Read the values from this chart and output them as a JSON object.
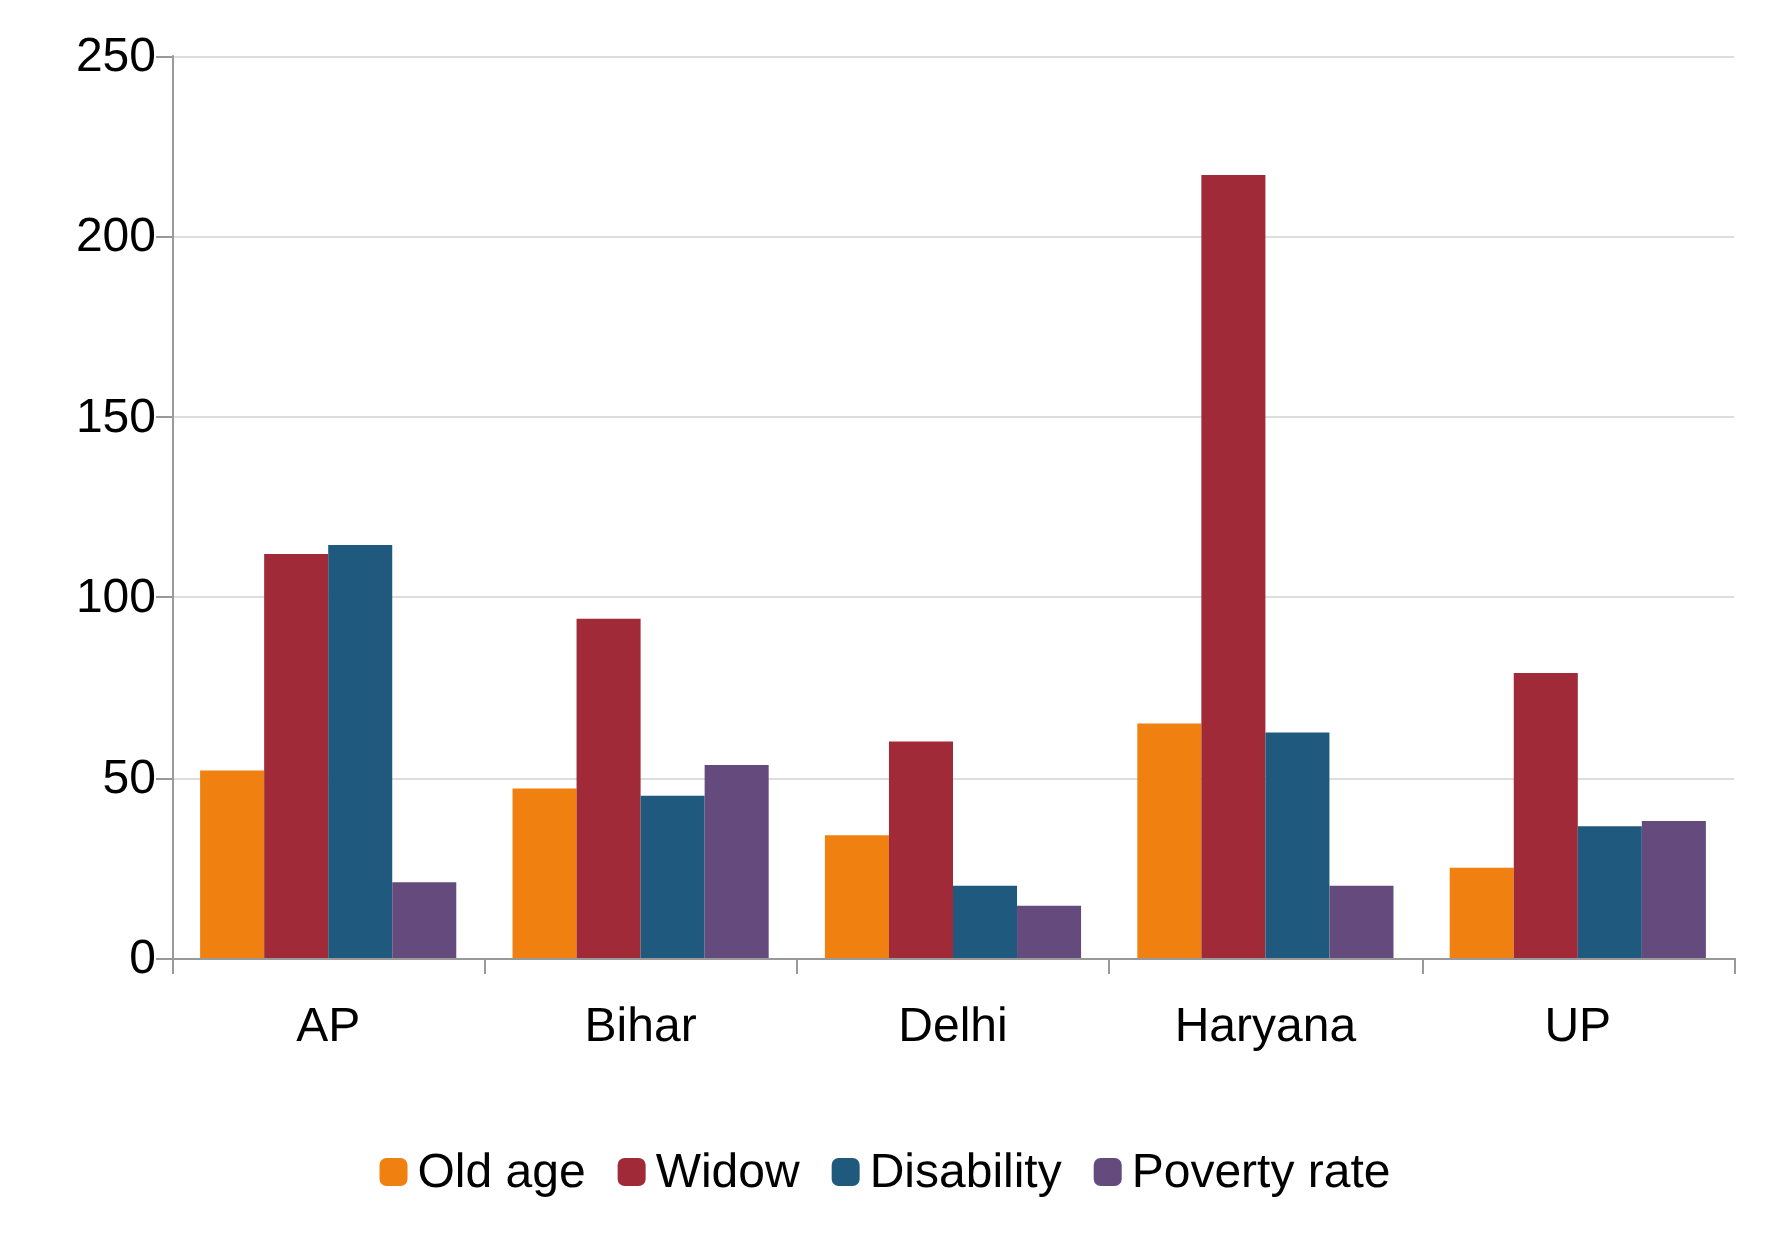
{
  "chart_data": {
    "type": "bar",
    "categories": [
      "AP",
      "Bihar",
      "Delhi",
      "Haryana",
      "UP"
    ],
    "series": [
      {
        "name": "Old age",
        "color": "#f08010",
        "values": [
          52,
          47,
          34,
          65,
          25
        ]
      },
      {
        "name": "Widow",
        "color": "#a02a38",
        "values": [
          112,
          94,
          60,
          217,
          79
        ]
      },
      {
        "name": "Disability",
        "color": "#1f5a7e",
        "values": [
          114.5,
          45,
          20,
          62.5,
          36.5
        ]
      },
      {
        "name": "Poverty rate",
        "color": "#654a7e",
        "values": [
          21,
          53.5,
          14.5,
          20,
          38
        ]
      }
    ],
    "ylim": [
      0,
      250
    ],
    "yticks": [
      0,
      50,
      100,
      150,
      200,
      250
    ],
    "grid": "y",
    "legend": "bottom"
  }
}
